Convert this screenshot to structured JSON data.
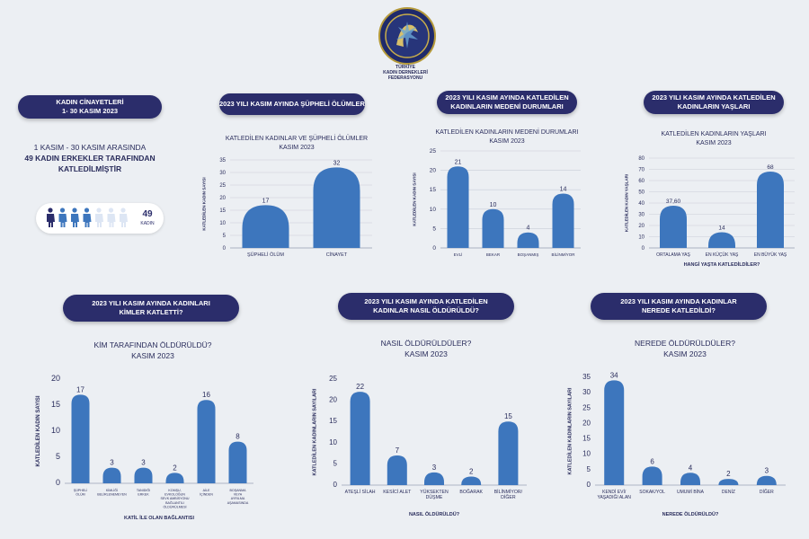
{
  "logo": {
    "text_lines": [
      "TÜRKİYE",
      "KADIN DERNEKLERİ",
      "FEDERASYONU"
    ]
  },
  "intro": {
    "title_lines": [
      "KADIN CİNAYETLERİ",
      "1- 30 KASIM 2023"
    ],
    "line1": "1 KASIM - 30 KASIM ARASINDA",
    "line2": "49 KADIN ERKEKLER TARAFINDAN",
    "line3": "KATLEDİLMİŞTİR",
    "count_value": "49",
    "count_label": "KADIN",
    "filled_icons": 4,
    "total_icons": 7,
    "colors": {
      "dark": "#2b2d6b",
      "blue": "#3d76bd",
      "light": "#dde6f4"
    }
  },
  "panels": [
    {
      "pill_lines": [
        "2023 YILI KASIM AYINDA ŞÜPHELİ ÖLÜMLER"
      ]
    },
    {
      "pill_lines": [
        "2023 YILI KASIM AYINDA KATLEDİLEN",
        "KADINLARIN MEDENİ DURUMLARI"
      ]
    },
    {
      "pill_lines": [
        "2023 YILI KASIM AYINDA KATLEDİLEN",
        "KADINLARIN YAŞLARI"
      ]
    },
    {
      "pill_lines": [
        "2023 YILI KASIM AYINDA KADINLARI",
        "KİMLER KATLETTİ?"
      ]
    },
    {
      "pill_lines": [
        "2023 YILI KASIM AYINDA KATLEDİLEN",
        "KADINLAR NASIL ÖLDÜRÜLDÜ?"
      ]
    },
    {
      "pill_lines": [
        "2023 YILI KASIM AYINDA KADINLAR",
        "NEREDE KATLEDİLDİ?"
      ]
    }
  ],
  "chart_data": [
    {
      "type": "bar",
      "title_lines": [
        "KATLEDİLEN KADINLAR VE ŞÜPHELİ ÖLÜMLER",
        "KASIM 2023"
      ],
      "ylabel": "KATLEDİLEN KADIN SAYISI",
      "xlabel": "",
      "ylim": [
        0,
        35
      ],
      "yticks": [
        0,
        5,
        10,
        15,
        20,
        25,
        30,
        35
      ],
      "grid": true,
      "categories": [
        [
          "ŞÜPHELİ ÖLÜM"
        ],
        [
          "CİNAYET"
        ]
      ],
      "values": [
        17,
        32
      ],
      "labels": [
        "17",
        "32"
      ]
    },
    {
      "type": "bar",
      "title_lines": [
        "KATLEDİLEN KADINLARIN MEDENİ DURUMLARI",
        "KASIM 2023"
      ],
      "ylabel": "KATLEDİLEN KADIN SAYISI",
      "xlabel": "",
      "ylim": [
        0,
        25
      ],
      "yticks": [
        0,
        5,
        10,
        15,
        20,
        25
      ],
      "grid": true,
      "categories": [
        [
          "EVLİ"
        ],
        [
          "BEKAR"
        ],
        [
          "BOŞANMIŞ"
        ],
        [
          "BİLİNMİYOR"
        ]
      ],
      "values": [
        21,
        10,
        4,
        14
      ],
      "labels": [
        "21",
        "10",
        "4",
        "14"
      ]
    },
    {
      "type": "bar",
      "title_lines": [
        "KATLEDİLEN KADINLARIN YAŞLARI",
        "KASIM 2023"
      ],
      "ylabel": "KATLEDİLEN KADIN YAŞLARI",
      "xlabel": "HANGİ YAŞTA KATLEDİLDİLER?",
      "ylim": [
        0,
        80
      ],
      "yticks": [
        0,
        10,
        20,
        30,
        40,
        50,
        60,
        70,
        80
      ],
      "grid": true,
      "categories": [
        [
          "ORTALAMA YAŞ"
        ],
        [
          "EN KÜÇÜK YAŞ"
        ],
        [
          "EN BÜYÜK YAŞ"
        ]
      ],
      "values": [
        37.6,
        14,
        68
      ],
      "labels": [
        "37,60",
        "14",
        "68"
      ]
    },
    {
      "type": "bar",
      "title_lines": [
        "KİM TARAFINDAN ÖLDÜRÜLDÜ?",
        "KASIM 2023"
      ],
      "ylabel": "KATLEDİLEN KADIN SAYISI",
      "xlabel": "KATİL İLE OLAN BAĞLANTISI",
      "ylim": [
        0,
        20
      ],
      "yticks": [
        0,
        5,
        10,
        15,
        20
      ],
      "grid": false,
      "categories": [
        [
          "ŞÜPHELİ",
          "ÖLÜM"
        ],
        [
          "KİMLİĞİ",
          "BELİRLENEMEYEN"
        ],
        [
          "TANIDIĞI",
          "ERKEK"
        ],
        [
          "KOMŞU,",
          "EVKOLOĞUN",
          "SEVK AMBİSYONU",
          "BAĞLANTILI",
          "ÖLDÜRÜLMESİ"
        ],
        [
          "AİLE",
          "İÇİNDEN"
        ],
        [
          "BOŞANMA",
          "VEYA",
          "AYRILMA",
          "AŞAMASINDA"
        ]
      ],
      "values": [
        17,
        3,
        3,
        2,
        16,
        8
      ],
      "labels": [
        "17",
        "3",
        "3",
        "2",
        "16",
        "8"
      ]
    },
    {
      "type": "bar",
      "title_lines": [
        "NASIL ÖLDÜRÜLDÜLER?",
        "KASIM 2023"
      ],
      "ylabel": "KATLEDİLEN KADINLARIN SAYILARI",
      "xlabel": "NASIL ÖLDÜRÜLDÜ?",
      "ylim": [
        0,
        25
      ],
      "yticks": [
        0,
        5,
        10,
        15,
        20,
        25
      ],
      "grid": false,
      "categories": [
        [
          "ATEŞLİ SİLAH"
        ],
        [
          "KESİCİ ALET"
        ],
        [
          "YÜKSEKTEN",
          "DÜŞME"
        ],
        [
          "BOĞARAK"
        ],
        [
          "BİLİNMİYOR/",
          "DİĞER"
        ]
      ],
      "values": [
        22,
        7,
        3,
        2,
        15
      ],
      "labels": [
        "22",
        "7",
        "3",
        "2",
        "15"
      ]
    },
    {
      "type": "bar",
      "title_lines": [
        "NEREDE ÖLDÜRÜLDÜLER?",
        "KASIM 2023"
      ],
      "ylabel": "KATLEDİLEN KADINLARIN SAYILARI",
      "xlabel": "NEREDE ÖLDÜRÜLDÜ?",
      "ylim": [
        0,
        35
      ],
      "yticks": [
        0,
        5,
        10,
        15,
        20,
        25,
        30,
        35
      ],
      "grid": false,
      "categories": [
        [
          "KENDİ EVİ/",
          "YAŞADIĞI ALAN"
        ],
        [
          "SOKAK/YOL"
        ],
        [
          "UMUMİ BİNA"
        ],
        [
          "DENİZ"
        ],
        [
          "DİĞER"
        ]
      ],
      "values": [
        34,
        6,
        4,
        2,
        3
      ],
      "labels": [
        "34",
        "6",
        "4",
        "2",
        "3"
      ]
    }
  ]
}
